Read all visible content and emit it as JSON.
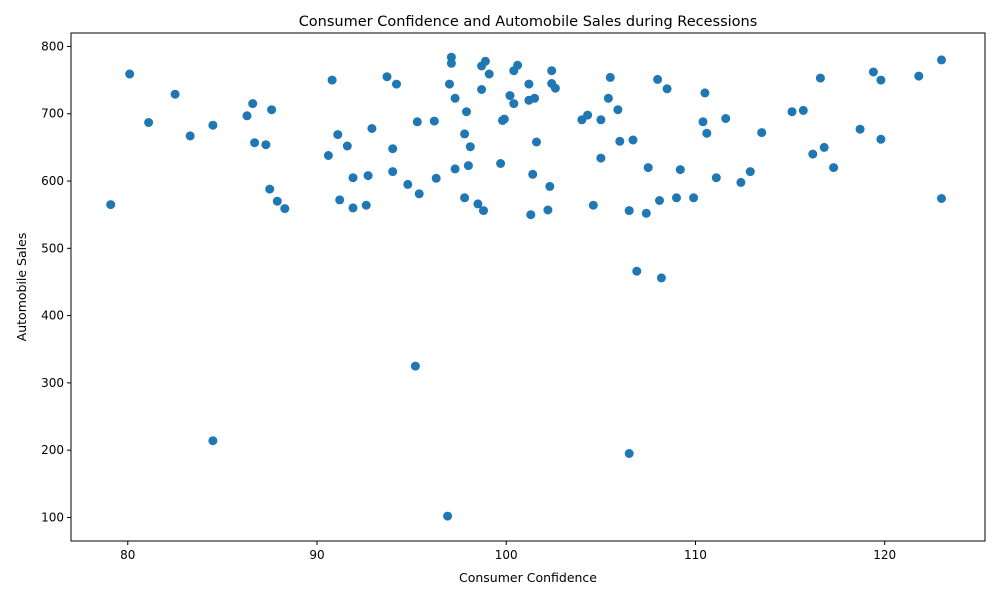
{
  "chart_data": {
    "type": "scatter",
    "title": "Consumer Confidence and Automobile Sales during Recessions",
    "xlabel": "Consumer Confidence",
    "ylabel": "Automobile Sales",
    "xlim": [
      77,
      125.3
    ],
    "ylim": [
      65,
      820
    ],
    "xticks": [
      80,
      90,
      100,
      110,
      120
    ],
    "yticks": [
      100,
      200,
      300,
      400,
      500,
      600,
      700,
      800
    ],
    "grid": false,
    "marker_color": "#1f77b4",
    "points": [
      [
        79.1,
        565
      ],
      [
        80.1,
        759
      ],
      [
        81.1,
        687
      ],
      [
        82.5,
        729
      ],
      [
        83.3,
        667
      ],
      [
        84.5,
        683
      ],
      [
        84.5,
        214
      ],
      [
        86.3,
        697
      ],
      [
        86.6,
        715
      ],
      [
        86.7,
        657
      ],
      [
        87.3,
        654
      ],
      [
        87.5,
        588
      ],
      [
        87.6,
        706
      ],
      [
        87.9,
        570
      ],
      [
        88.3,
        559
      ],
      [
        90.6,
        638
      ],
      [
        90.8,
        750
      ],
      [
        91.1,
        669
      ],
      [
        91.2,
        572
      ],
      [
        91.6,
        652
      ],
      [
        91.9,
        605
      ],
      [
        91.9,
        560
      ],
      [
        92.6,
        564
      ],
      [
        92.7,
        608
      ],
      [
        92.9,
        678
      ],
      [
        93.7,
        755
      ],
      [
        94.0,
        648
      ],
      [
        94.0,
        614
      ],
      [
        94.2,
        744
      ],
      [
        94.8,
        595
      ],
      [
        95.2,
        325
      ],
      [
        95.3,
        688
      ],
      [
        95.4,
        581
      ],
      [
        96.2,
        689
      ],
      [
        96.3,
        604
      ],
      [
        96.9,
        102
      ],
      [
        97.0,
        744
      ],
      [
        97.1,
        784
      ],
      [
        97.1,
        775
      ],
      [
        97.3,
        723
      ],
      [
        97.3,
        618
      ],
      [
        97.8,
        575
      ],
      [
        97.8,
        670
      ],
      [
        97.9,
        703
      ],
      [
        98.0,
        623
      ],
      [
        98.1,
        651
      ],
      [
        98.5,
        566
      ],
      [
        98.7,
        771
      ],
      [
        98.7,
        736
      ],
      [
        98.8,
        556
      ],
      [
        98.9,
        778
      ],
      [
        99.1,
        759
      ],
      [
        99.7,
        626
      ],
      [
        99.8,
        690
      ],
      [
        99.9,
        692
      ],
      [
        100.2,
        727
      ],
      [
        100.4,
        715
      ],
      [
        100.4,
        764
      ],
      [
        100.6,
        772
      ],
      [
        101.2,
        744
      ],
      [
        101.2,
        720
      ],
      [
        101.3,
        550
      ],
      [
        101.4,
        610
      ],
      [
        101.5,
        723
      ],
      [
        101.6,
        658
      ],
      [
        102.2,
        557
      ],
      [
        102.3,
        592
      ],
      [
        102.4,
        764
      ],
      [
        102.4,
        745
      ],
      [
        102.6,
        738
      ],
      [
        104.0,
        691
      ],
      [
        104.3,
        698
      ],
      [
        104.6,
        564
      ],
      [
        105.0,
        634
      ],
      [
        105.0,
        691
      ],
      [
        105.4,
        723
      ],
      [
        105.5,
        754
      ],
      [
        105.9,
        706
      ],
      [
        106.0,
        659
      ],
      [
        106.5,
        556
      ],
      [
        106.5,
        195
      ],
      [
        106.7,
        661
      ],
      [
        106.9,
        466
      ],
      [
        107.4,
        552
      ],
      [
        107.5,
        620
      ],
      [
        108.0,
        751
      ],
      [
        108.1,
        571
      ],
      [
        108.2,
        456
      ],
      [
        108.5,
        737
      ],
      [
        109.0,
        575
      ],
      [
        109.2,
        617
      ],
      [
        109.9,
        575
      ],
      [
        110.4,
        688
      ],
      [
        110.5,
        731
      ],
      [
        110.6,
        671
      ],
      [
        111.1,
        605
      ],
      [
        111.6,
        693
      ],
      [
        112.4,
        598
      ],
      [
        112.9,
        614
      ],
      [
        113.5,
        672
      ],
      [
        115.1,
        703
      ],
      [
        115.7,
        705
      ],
      [
        116.2,
        640
      ],
      [
        116.6,
        753
      ],
      [
        116.8,
        650
      ],
      [
        117.3,
        620
      ],
      [
        118.7,
        677
      ],
      [
        119.4,
        762
      ],
      [
        119.8,
        750
      ],
      [
        119.8,
        662
      ],
      [
        121.8,
        756
      ],
      [
        123.0,
        780
      ],
      [
        123.0,
        574
      ]
    ]
  }
}
